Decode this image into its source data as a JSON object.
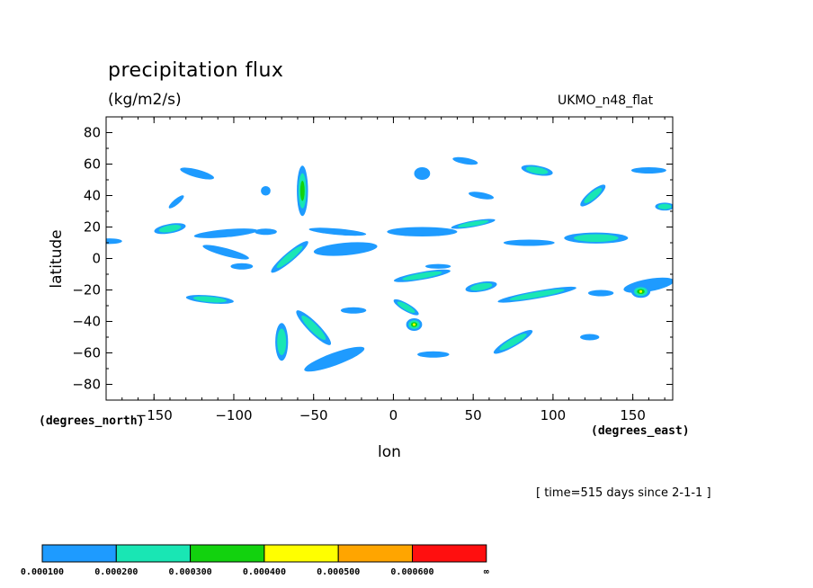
{
  "header": {
    "title": "precipitation flux",
    "units": "(kg/m2/s)",
    "dataset": "UKMO_n48_flat",
    "time_label": "[ time=515 days since 2-1-1 ]"
  },
  "chart_data": {
    "type": "heatmap",
    "title": "precipitation flux",
    "subtitle": "(kg/m2/s)",
    "xlabel": "lon",
    "ylabel": "latitude",
    "x_units": "(degrees_east)",
    "y_units": "(degrees_north)",
    "xlim": [
      -180,
      175
    ],
    "ylim": [
      -90,
      90
    ],
    "x_ticks": [
      -150,
      -100,
      -50,
      0,
      50,
      100,
      150
    ],
    "y_ticks": [
      80,
      60,
      40,
      20,
      0,
      -20,
      -40,
      -60,
      -80
    ],
    "grid": false,
    "legend": {
      "placement": "bottom-left",
      "levels": [
        "0.000100",
        "0.000200",
        "0.000300",
        "0.000400",
        "0.000500",
        "0.000600",
        "∞"
      ],
      "colors": [
        "#1e9bff",
        "#19e6b4",
        "#12d20e",
        "#ffff00",
        "#ffa500",
        "#ff0f0f"
      ]
    },
    "regions": [
      {
        "lon": -178,
        "lat": 11,
        "a": 8,
        "b": 1.8,
        "rot": 0,
        "level": 1
      },
      {
        "lon": -140,
        "lat": 19,
        "a": 10,
        "b": 3,
        "rot": -10,
        "level": 2
      },
      {
        "lon": -105,
        "lat": 16,
        "a": 20,
        "b": 2.5,
        "rot": -5,
        "level": 1
      },
      {
        "lon": -123,
        "lat": 54,
        "a": 11,
        "b": 2.5,
        "rot": 15,
        "level": 1
      },
      {
        "lon": -136,
        "lat": 36,
        "a": 6,
        "b": 1.8,
        "rot": -40,
        "level": 1
      },
      {
        "lon": -80,
        "lat": 43,
        "a": 3,
        "b": 3,
        "rot": 0,
        "level": 1
      },
      {
        "lon": -57,
        "lat": 43,
        "a": 3.5,
        "b": 16,
        "rot": 0,
        "level": 3
      },
      {
        "lon": -35,
        "lat": 17,
        "a": 18,
        "b": 2,
        "rot": 5,
        "level": 1
      },
      {
        "lon": -80,
        "lat": 17,
        "a": 7,
        "b": 2,
        "rot": 0,
        "level": 1
      },
      {
        "lon": -105,
        "lat": 4,
        "a": 15,
        "b": 2.5,
        "rot": 15,
        "level": 1
      },
      {
        "lon": -65,
        "lat": 1,
        "a": 15,
        "b": 3,
        "rot": -40,
        "level": 2
      },
      {
        "lon": -95,
        "lat": -5,
        "a": 7,
        "b": 2,
        "rot": 0,
        "level": 1
      },
      {
        "lon": -30,
        "lat": 6,
        "a": 20,
        "b": 4,
        "rot": -5,
        "level": 1
      },
      {
        "lon": -115,
        "lat": -26,
        "a": 15,
        "b": 2.5,
        "rot": 5,
        "level": 2
      },
      {
        "lon": -25,
        "lat": -33,
        "a": 8,
        "b": 2,
        "rot": 0,
        "level": 1
      },
      {
        "lon": -50,
        "lat": -44,
        "a": 15,
        "b": 3.5,
        "rot": 45,
        "level": 2
      },
      {
        "lon": -70,
        "lat": -53,
        "a": 4,
        "b": 12,
        "rot": 0,
        "level": 2
      },
      {
        "lon": -37,
        "lat": -64,
        "a": 20,
        "b": 4,
        "rot": -20,
        "level": 1
      },
      {
        "lon": 8,
        "lat": -31,
        "a": 9,
        "b": 2.5,
        "rot": 30,
        "level": 2
      },
      {
        "lon": 13,
        "lat": -42,
        "a": 5,
        "b": 4,
        "rot": 0,
        "level": 4
      },
      {
        "lon": 25,
        "lat": -61,
        "a": 10,
        "b": 2,
        "rot": 0,
        "level": 1
      },
      {
        "lon": 18,
        "lat": 17,
        "a": 22,
        "b": 3,
        "rot": 0,
        "level": 1
      },
      {
        "lon": 50,
        "lat": 22,
        "a": 14,
        "b": 2,
        "rot": -10,
        "level": 2
      },
      {
        "lon": 18,
        "lat": -11,
        "a": 18,
        "b": 2.5,
        "rot": -10,
        "level": 2
      },
      {
        "lon": 55,
        "lat": -18,
        "a": 10,
        "b": 3,
        "rot": -10,
        "level": 2
      },
      {
        "lon": 90,
        "lat": -23,
        "a": 25,
        "b": 2.5,
        "rot": -10,
        "level": 2
      },
      {
        "lon": 18,
        "lat": 54,
        "a": 5,
        "b": 4,
        "rot": 0,
        "level": 1
      },
      {
        "lon": 45,
        "lat": 62,
        "a": 8,
        "b": 2,
        "rot": 10,
        "level": 1
      },
      {
        "lon": 55,
        "lat": 40,
        "a": 8,
        "b": 2,
        "rot": 10,
        "level": 1
      },
      {
        "lon": 90,
        "lat": 56,
        "a": 10,
        "b": 3,
        "rot": 10,
        "level": 2
      },
      {
        "lon": 125,
        "lat": 40,
        "a": 10,
        "b": 3,
        "rot": -40,
        "level": 2
      },
      {
        "lon": 160,
        "lat": 56,
        "a": 11,
        "b": 2,
        "rot": 0,
        "level": 1
      },
      {
        "lon": 127,
        "lat": 13,
        "a": 20,
        "b": 3.5,
        "rot": 0,
        "level": 2
      },
      {
        "lon": 85,
        "lat": 10,
        "a": 16,
        "b": 2,
        "rot": 0,
        "level": 1
      },
      {
        "lon": 170,
        "lat": 33,
        "a": 6,
        "b": 2.5,
        "rot": 0,
        "level": 2
      },
      {
        "lon": 75,
        "lat": -53,
        "a": 14,
        "b": 3,
        "rot": -30,
        "level": 2
      },
      {
        "lon": 123,
        "lat": -50,
        "a": 6,
        "b": 2,
        "rot": 0,
        "level": 1
      },
      {
        "lon": 160,
        "lat": -17,
        "a": 16,
        "b": 4,
        "rot": -10,
        "level": 1
      },
      {
        "lon": 155,
        "lat": -21,
        "a": 6,
        "b": 4,
        "rot": 0,
        "level": 4
      },
      {
        "lon": 130,
        "lat": -22,
        "a": 8,
        "b": 2,
        "rot": 0,
        "level": 1
      },
      {
        "lon": 28,
        "lat": -5,
        "a": 8,
        "b": 1.5,
        "rot": 0,
        "level": 1
      }
    ]
  }
}
